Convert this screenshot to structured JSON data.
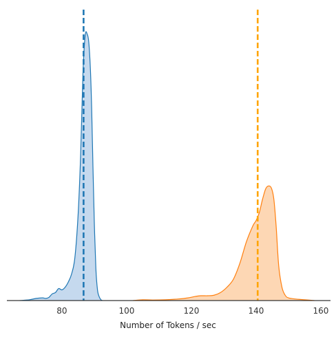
{
  "chart_data": {
    "type": "area",
    "title": "",
    "xlabel": "Number of Tokens / sec",
    "ylabel": "",
    "xlim": [
      63,
      163
    ],
    "ylim": [
      0,
      1.05
    ],
    "x_ticks": [
      80,
      100,
      120,
      140,
      160
    ],
    "x_tick_labels": [
      "80",
      "100",
      "120",
      "140",
      "160"
    ],
    "grid": false,
    "series": [
      {
        "color": "#1f77b4",
        "fill": "#c5d9ee",
        "mean": 86.7,
        "x": [
          67,
          70,
          72,
          74,
          75,
          76,
          77,
          78,
          79,
          80,
          81,
          82,
          83,
          84,
          85,
          85.8,
          86.5,
          87.2,
          87.8,
          88.3,
          88.8,
          89.2,
          89.6,
          90,
          90.5,
          91,
          91.5,
          92,
          92.5
        ],
        "y": [
          0.0,
          0.003,
          0.008,
          0.01,
          0.008,
          0.012,
          0.025,
          0.03,
          0.045,
          0.04,
          0.05,
          0.07,
          0.1,
          0.16,
          0.32,
          0.55,
          0.85,
          0.995,
          1.0,
          0.97,
          0.87,
          0.72,
          0.5,
          0.3,
          0.12,
          0.04,
          0.015,
          0.004,
          0.0
        ]
      },
      {
        "color": "#ff7f0e",
        "fill": "#fdd7b4",
        "mean": 140.5,
        "x": [
          102,
          105,
          108,
          112,
          116,
          119,
          121,
          123,
          125,
          127,
          129,
          131,
          133,
          135,
          137,
          139,
          140,
          141,
          142,
          143,
          144,
          144.8,
          145.5,
          146.2,
          147,
          148,
          149,
          150,
          152,
          155,
          158
        ],
        "y": [
          0.0,
          0.003,
          0.002,
          0.003,
          0.006,
          0.01,
          0.015,
          0.018,
          0.018,
          0.02,
          0.03,
          0.05,
          0.08,
          0.14,
          0.22,
          0.28,
          0.3,
          0.33,
          0.38,
          0.42,
          0.43,
          0.42,
          0.38,
          0.28,
          0.13,
          0.05,
          0.02,
          0.01,
          0.006,
          0.003,
          0.0
        ]
      }
    ]
  }
}
